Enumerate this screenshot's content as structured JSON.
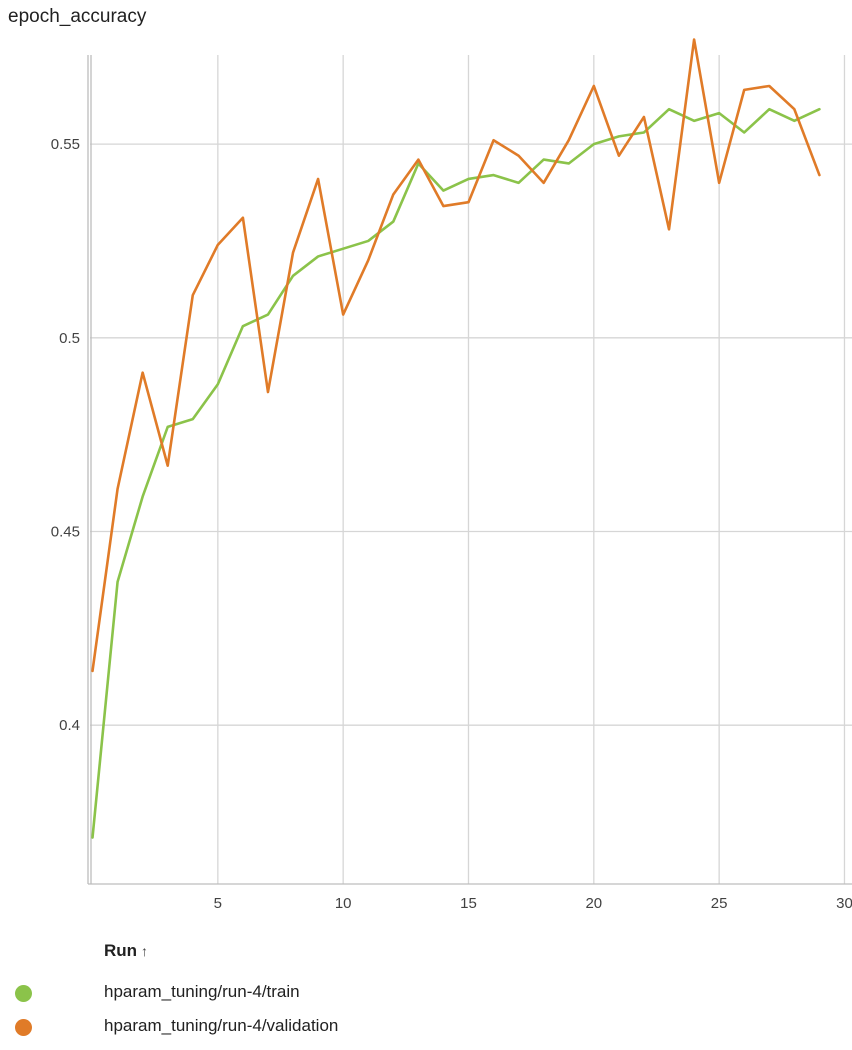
{
  "card": {
    "title": "epoch_accuracy"
  },
  "legend": {
    "header": "Run",
    "sort_icon": "↑"
  },
  "chart_data": {
    "type": "line",
    "title": "epoch_accuracy",
    "xlabel": "",
    "ylabel": "",
    "xlim": [
      -0.1,
      30.3
    ],
    "ylim": [
      0.359,
      0.573
    ],
    "x_ticks": [
      5,
      10,
      15,
      20,
      25,
      30
    ],
    "y_ticks": [
      0.4,
      0.45,
      0.5,
      0.55
    ],
    "y_tick_labels": [
      "0.4",
      "0.45",
      "0.5",
      "0.55"
    ],
    "grid": true,
    "legend_position": "bottom-left",
    "series": [
      {
        "name": "hparam_tuning/run-4/train",
        "color": "#8bc34a",
        "x": [
          0,
          1,
          2,
          3,
          4,
          5,
          6,
          7,
          8,
          9,
          10,
          11,
          12,
          13,
          14,
          15,
          16,
          17,
          18,
          19,
          20,
          21,
          22,
          23,
          24,
          25,
          26,
          27,
          28,
          29
        ],
        "values": [
          0.371,
          0.437,
          0.459,
          0.477,
          0.479,
          0.488,
          0.503,
          0.506,
          0.516,
          0.521,
          0.523,
          0.525,
          0.53,
          0.545,
          0.538,
          0.541,
          0.542,
          0.54,
          0.546,
          0.545,
          0.55,
          0.552,
          0.553,
          0.559,
          0.556,
          0.558,
          0.553,
          0.559,
          0.556,
          0.559
        ]
      },
      {
        "name": "hparam_tuning/run-4/validation",
        "color": "#e07b28",
        "x": [
          0,
          1,
          2,
          3,
          4,
          5,
          6,
          7,
          8,
          9,
          10,
          11,
          12,
          13,
          14,
          15,
          16,
          17,
          18,
          19,
          20,
          21,
          22,
          23,
          24,
          25,
          26,
          27,
          28,
          29
        ],
        "values": [
          0.414,
          0.461,
          0.491,
          0.467,
          0.511,
          0.524,
          0.531,
          0.486,
          0.522,
          0.541,
          0.506,
          0.52,
          0.537,
          0.546,
          0.534,
          0.535,
          0.551,
          0.547,
          0.54,
          0.551,
          0.565,
          0.547,
          0.557,
          0.528,
          0.577,
          0.54,
          0.564,
          0.565,
          0.559,
          0.542
        ]
      }
    ]
  }
}
